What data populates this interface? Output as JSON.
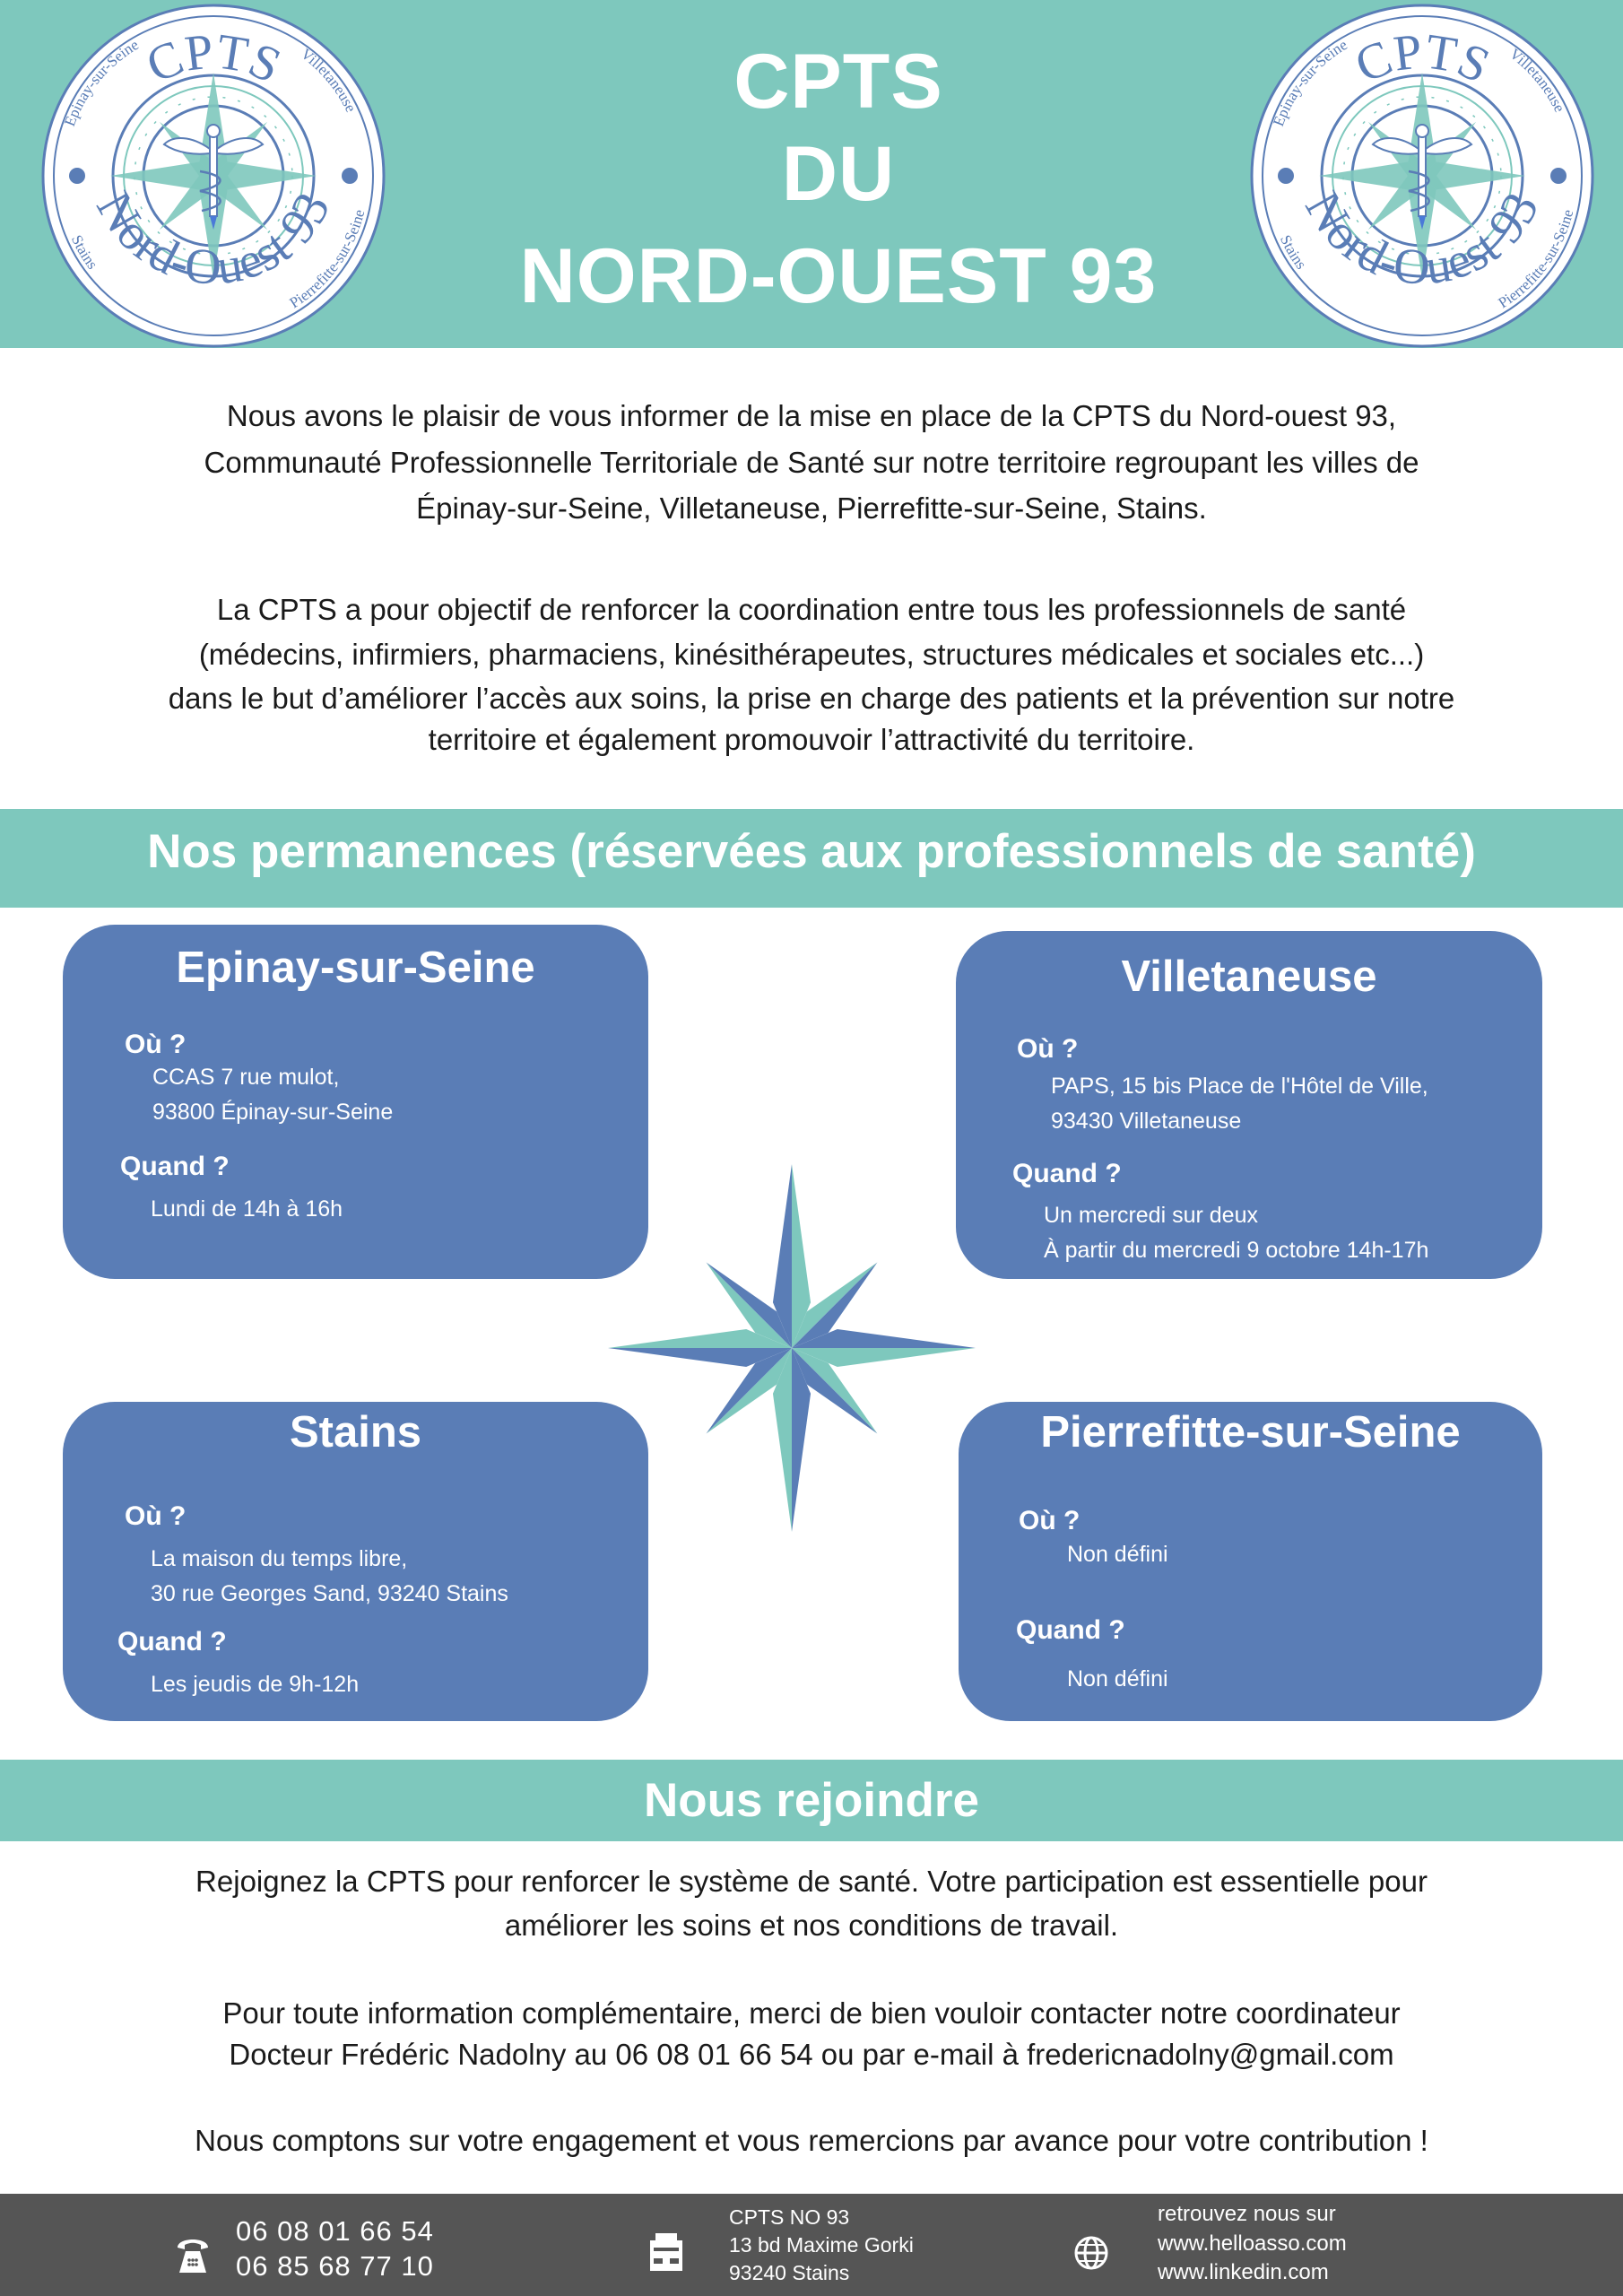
{
  "colors": {
    "teal": "#7ec8bd",
    "blue": "#5a7db6",
    "footer": "#555555"
  },
  "header": {
    "title_lines": [
      "CPTS",
      "DU",
      "NORD-OUEST 93"
    ],
    "logo": {
      "top": "CPTS",
      "bottom": "Nord-Ouest 93",
      "cities": [
        "Epinay-sur-Seine",
        "Villetaneuse",
        "Stains",
        "Pierrefitte-sur-Seine"
      ]
    }
  },
  "intro": {
    "p1": [
      "Nous avons le plaisir de vous informer de la mise en place de la CPTS du Nord-ouest 93,",
      "Communauté Professionnelle Territoriale de Santé sur notre territoire regroupant les villes de",
      "Épinay-sur-Seine, Villetaneuse, Pierrefitte-sur-Seine, Stains."
    ],
    "p2": [
      "La CPTS a pour objectif de renforcer la coordination entre tous les professionnels de santé",
      "(médecins, infirmiers, pharmaciens, kinésithérapeutes, structures médicales et sociales etc...)",
      "dans le but d’améliorer l’accès aux soins, la prise en charge des patients et la prévention sur notre",
      "territoire et également promouvoir l’attractivité du territoire."
    ]
  },
  "permanences": {
    "heading": "Nos permanences (réservées aux professionnels de santé)",
    "where_label": "Où ?",
    "when_label": "Quand ?",
    "boxes": [
      {
        "city": "Epinay-sur-Seine",
        "where": [
          "CCAS 7 rue mulot,",
          "93800 Épinay-sur-Seine"
        ],
        "when": [
          "Lundi de 14h à 16h"
        ]
      },
      {
        "city": "Villetaneuse",
        "where": [
          "PAPS, 15 bis Place de l'Hôtel de Ville,",
          "93430 Villetaneuse"
        ],
        "when": [
          "Un mercredi sur deux",
          "À partir du mercredi 9 octobre 14h-17h"
        ]
      },
      {
        "city": "Stains",
        "where": [
          "La maison du temps libre,",
          "30 rue Georges Sand, 93240 Stains"
        ],
        "when": [
          "Les jeudis de 9h-12h"
        ]
      },
      {
        "city": "Pierrefitte-sur-Seine",
        "where": [
          "Non défini"
        ],
        "when": [
          "Non défini"
        ]
      }
    ]
  },
  "join": {
    "heading": "Nous rejoindre",
    "lines": [
      "Rejoignez la CPTS pour renforcer le système de santé. Votre participation est essentielle pour",
      "améliorer les soins et nos conditions de travail.",
      "Pour toute information complémentaire, merci de bien vouloir contacter notre coordinateur",
      "Docteur Frédéric Nadolny au 06 08 01 66 54 ou par e-mail à fredericnadolny@gmail.com",
      "Nous comptons sur votre engagement et vous remercions par avance pour votre contribution !"
    ]
  },
  "footer": {
    "phone_icon": "telephone-icon",
    "phones": [
      "06 08 01 66 54",
      "06 85 68 77 10"
    ],
    "office_icon": "office-building-icon",
    "address": [
      "CPTS NO 93",
      "13 bd Maxime Gorki",
      "93240 Stains"
    ],
    "web_icon": "globe-icon",
    "web": [
      "retrouvez nous sur",
      "www.helloasso.com",
      "www.linkedin.com"
    ]
  }
}
